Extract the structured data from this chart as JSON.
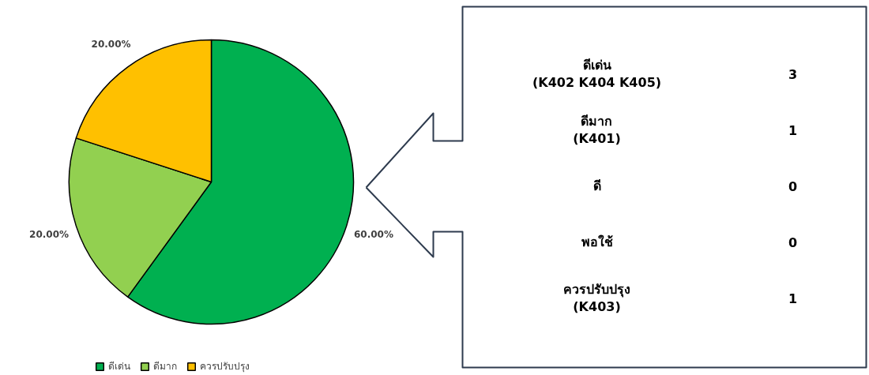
{
  "chart_data": [
    {
      "type": "pie",
      "categories": [
        "ดีเด่น",
        "ดีมาก",
        "ควรปรับปรุง"
      ],
      "values": [
        60,
        20,
        20
      ],
      "colors": [
        "#00b050",
        "#92d050",
        "#ffc000"
      ],
      "value_labels": [
        "60.00%",
        "20.00%",
        "20.00%"
      ],
      "legend": "bottom"
    },
    {
      "type": "other",
      "annotations": [
        "ดีเด่น\n(K402 K404 K405)",
        "3",
        "ดีมาก\n(K401)",
        "1",
        "ดี",
        "0",
        "พอใช้",
        "0",
        "ควรปรับปรุง\n(K403)",
        "1"
      ]
    }
  ]
}
